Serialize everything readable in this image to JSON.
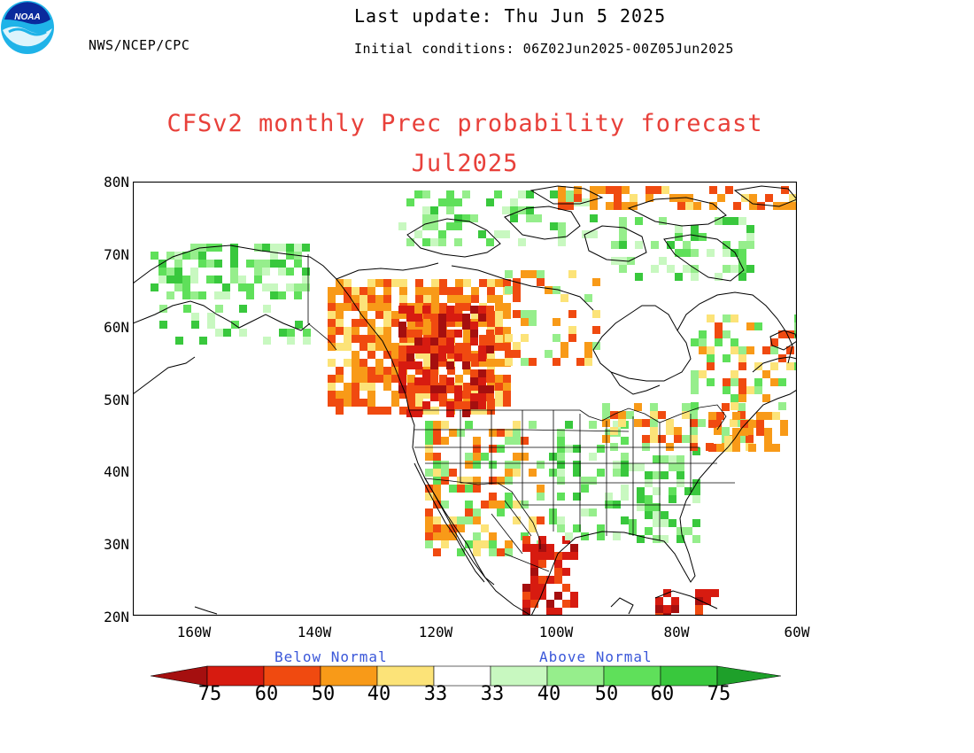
{
  "header": {
    "agency": "NWS/NCEP/CPC",
    "last_update": "Last update: Thu Jun  5 2025",
    "initial_conditions": "Initial conditions: 06Z02Jun2025-00Z05Jun2025"
  },
  "logo": {
    "text": "NOAA",
    "colors": {
      "outer": "#1fb3e8",
      "inner": "#0a2a9c"
    }
  },
  "title": "CFSv2 monthly Prec probability forecast",
  "period": "Jul2025",
  "map": {
    "lon_range": [
      -170,
      -60
    ],
    "lat_range": [
      20,
      80
    ],
    "y_ticks": [
      "80N",
      "70N",
      "60N",
      "50N",
      "40N",
      "30N",
      "20N"
    ],
    "x_ticks": [
      "160W",
      "140W",
      "120W",
      "100W",
      "80W",
      "60W"
    ]
  },
  "legend": {
    "below_label": "Below Normal",
    "above_label": "Above Normal",
    "labels": [
      "75",
      "60",
      "50",
      "40",
      "33",
      "33",
      "40",
      "50",
      "60",
      "75"
    ],
    "colors": [
      "#a50f0f",
      "#d71b10",
      "#f04a10",
      "#f89a18",
      "#fce378",
      "#ffffff",
      "#c8f8c0",
      "#96ee8c",
      "#5fe05a",
      "#39c83d",
      "#1ea02a"
    ]
  }
}
